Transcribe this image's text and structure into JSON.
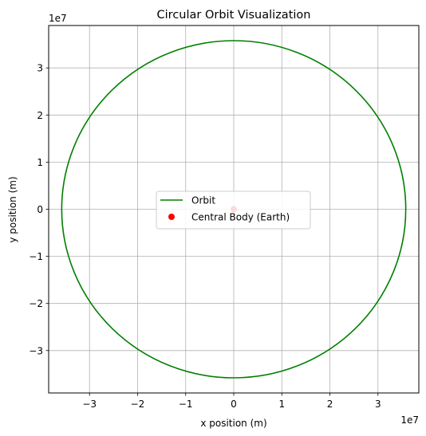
{
  "chart_data": {
    "type": "line",
    "title": "Circular Orbit Visualization",
    "xlabel": "x position (m)",
    "ylabel": "y position (m)",
    "x_offset_label": "1e7",
    "y_offset_label": "1e7",
    "xlim": [
      -38500000,
      38500000
    ],
    "ylim": [
      -39000000,
      39000000
    ],
    "xticks": [
      -30000000,
      -20000000,
      -10000000,
      0,
      10000000,
      20000000,
      30000000
    ],
    "xtick_labels": [
      "−3",
      "−2",
      "−1",
      "0",
      "1",
      "2",
      "3"
    ],
    "yticks": [
      -30000000,
      -20000000,
      -10000000,
      0,
      10000000,
      20000000,
      30000000
    ],
    "ytick_labels": [
      "−3",
      "−2",
      "−1",
      "0",
      "1",
      "2",
      "3"
    ],
    "grid": true,
    "aspect": "equal",
    "legend_position": "center",
    "series": [
      {
        "name": "Orbit",
        "kind": "line",
        "shape": "circle",
        "center": [
          0,
          0
        ],
        "radius": 35786000,
        "color": "#008000"
      },
      {
        "name": "Central Body (Earth)",
        "kind": "scatter",
        "points": [
          [
            0,
            0
          ]
        ],
        "color": "#ff0000"
      }
    ]
  }
}
